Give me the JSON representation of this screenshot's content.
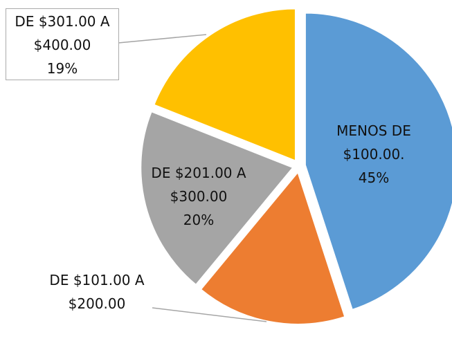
{
  "chart_data": {
    "type": "pie",
    "categories": [
      "MENOS DE $100.00.",
      "DE $101.00 A $200.00",
      "DE $201.00 A $300.00",
      "DE $301.00 A $400.00"
    ],
    "values": [
      45,
      16,
      20,
      19
    ],
    "value_labels": [
      "45%",
      null,
      "20%",
      "19%"
    ],
    "colors": [
      "#5b9bd5",
      "#ed7d31",
      "#a5a5a5",
      "#ffc000"
    ]
  }
}
